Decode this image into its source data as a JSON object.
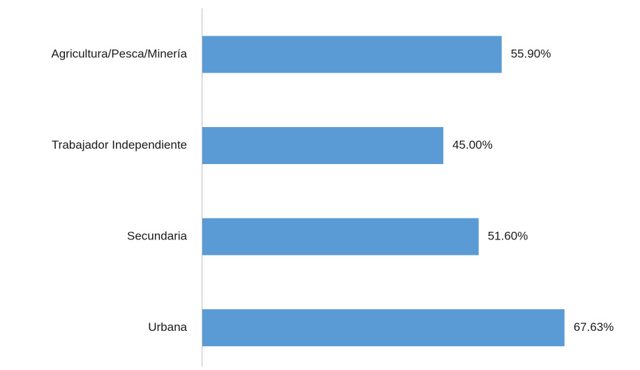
{
  "chart_data": {
    "type": "bar",
    "orientation": "horizontal",
    "categories": [
      "Agricultura/Pesca/Minería",
      "Trabajador Independiente",
      "Secundaria",
      "Urbana"
    ],
    "values": [
      55.9,
      45.0,
      51.6,
      67.63
    ],
    "data_labels": [
      "55.90%",
      "45.00%",
      "51.60%",
      "67.63%"
    ],
    "unit": "%",
    "xlim": [
      0,
      70
    ],
    "grid": false,
    "legend": "none",
    "colors": {
      "bar": "#5b9bd5",
      "axis": "#bfbfbf",
      "text": "#1a1a1a"
    }
  }
}
